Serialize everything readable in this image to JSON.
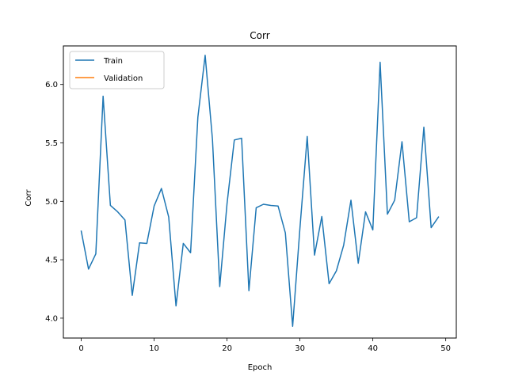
{
  "chart_data": {
    "type": "line",
    "title": "Corr",
    "xlabel": "Epoch",
    "ylabel": "Corr",
    "xlim": [
      -2.45,
      51.45
    ],
    "ylim": [
      3.83,
      6.33
    ],
    "x_ticks": [
      0,
      10,
      20,
      30,
      40,
      50
    ],
    "y_ticks": [
      4.0,
      4.5,
      5.0,
      5.5,
      6.0
    ],
    "x_tick_labels": [
      "0",
      "10",
      "20",
      "30",
      "40",
      "50"
    ],
    "y_tick_labels": [
      "4.0",
      "4.5",
      "5.0",
      "5.5",
      "6.0"
    ],
    "grid": false,
    "legend_position": "top-left",
    "series": [
      {
        "name": "Train",
        "color": "#1f77b4",
        "x": [
          0,
          1,
          2,
          3,
          4,
          5,
          6,
          7,
          8,
          9,
          10,
          11,
          12,
          13,
          14,
          15,
          16,
          17,
          18,
          19,
          20,
          21,
          22,
          23,
          24,
          25,
          26,
          27,
          28,
          29,
          30,
          31,
          32,
          33,
          34,
          35,
          36,
          37,
          38,
          39,
          40,
          41,
          42,
          43,
          44,
          45,
          46,
          47,
          48,
          49
        ],
        "values": [
          4.745,
          4.42,
          4.55,
          5.9,
          4.965,
          4.91,
          4.84,
          4.195,
          4.645,
          4.64,
          4.96,
          5.11,
          4.865,
          4.105,
          4.64,
          4.56,
          5.72,
          6.25,
          5.53,
          4.27,
          4.98,
          5.525,
          5.54,
          4.235,
          4.945,
          4.975,
          4.965,
          4.96,
          4.73,
          3.93,
          4.77,
          5.555,
          4.54,
          4.87,
          4.295,
          4.405,
          4.625,
          5.01,
          4.47,
          4.91,
          4.755,
          6.19,
          4.89,
          5.01,
          5.51,
          4.825,
          4.86,
          5.635,
          4.775,
          4.865
        ]
      },
      {
        "name": "Validation",
        "color": "#ff7f0e",
        "x": [],
        "values": []
      }
    ]
  }
}
